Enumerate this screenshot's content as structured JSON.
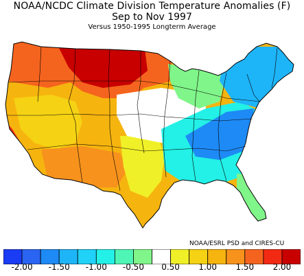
{
  "header": {
    "title": "NOAA/NCDC Climate Division Temperature Anomalies (F)",
    "period": "Sep to Nov 1997",
    "baseline": "Versus 1950-1995 Longterm Average"
  },
  "credit": "NOAA/ESRL PSD and CIRES-CU",
  "legend": {
    "colors": [
      "#1a3cf5",
      "#2a64f2",
      "#1e8af5",
      "#1eb4f8",
      "#20d2f7",
      "#23f0e6",
      "#4ff5b4",
      "#80f589",
      "#ffffff",
      "#f0f028",
      "#f5d214",
      "#f6b40f",
      "#f7921c",
      "#f5641e",
      "#f22a14",
      "#c80000"
    ],
    "tick_labels": [
      "-2.00",
      "-1.50",
      "-1.00",
      "-0.50",
      "0.50",
      "1.00",
      "1.50",
      "2.00"
    ],
    "tick_positions": [
      1,
      3,
      5,
      7,
      9,
      11,
      13,
      15
    ]
  },
  "map_layers": [
    {
      "name": "west-coast-warm",
      "color": "#f6b40f"
    },
    {
      "name": "pacific-northwest-hot",
      "color": "#f5641e"
    },
    {
      "name": "northern-plains-hot",
      "color": "#c80000"
    },
    {
      "name": "great-basin-warm",
      "color": "#f5d214"
    },
    {
      "name": "california-coast-hot",
      "color": "#f22a14"
    },
    {
      "name": "southwest-warm",
      "color": "#f7921c"
    },
    {
      "name": "texas-mixed",
      "color": "#f0f028"
    },
    {
      "name": "midwest-neutral",
      "color": "#ffffff"
    },
    {
      "name": "great-lakes-cool",
      "color": "#80f589"
    },
    {
      "name": "east-cool",
      "color": "#23f0e6"
    },
    {
      "name": "appalachia-cold",
      "color": "#1e8af5"
    },
    {
      "name": "northeast-cold",
      "color": "#1eb4f8"
    },
    {
      "name": "florida-cool",
      "color": "#80f589"
    }
  ]
}
